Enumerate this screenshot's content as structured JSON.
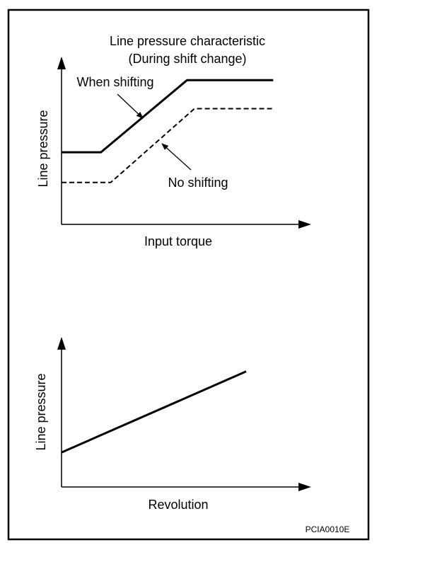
{
  "figure_code": "PCIA0010E",
  "chart_data": [
    {
      "type": "line",
      "title": "Line pressure characteristic",
      "subtitle": "(During shift change)",
      "xlabel": "Input torque",
      "ylabel": "Line pressure",
      "xlim": [
        0,
        100
      ],
      "ylim": [
        0,
        100
      ],
      "grid": false,
      "legend": "none",
      "series": [
        {
          "name": "When shifting",
          "style": "solid",
          "x": [
            0,
            16,
            51,
            86
          ],
          "y": [
            43,
            43,
            86,
            86
          ]
        },
        {
          "name": "No shifting",
          "style": "dashed",
          "x": [
            0,
            20,
            54,
            86
          ],
          "y": [
            25,
            25,
            69,
            69
          ]
        }
      ]
    },
    {
      "type": "line",
      "title": "",
      "xlabel": "Revolution",
      "ylabel": "Line pressure",
      "xlim": [
        0,
        100
      ],
      "ylim": [
        0,
        100
      ],
      "grid": false,
      "legend": "none",
      "series": [
        {
          "name": "",
          "style": "solid",
          "x": [
            0,
            75
          ],
          "y": [
            23,
            77
          ]
        }
      ]
    }
  ]
}
